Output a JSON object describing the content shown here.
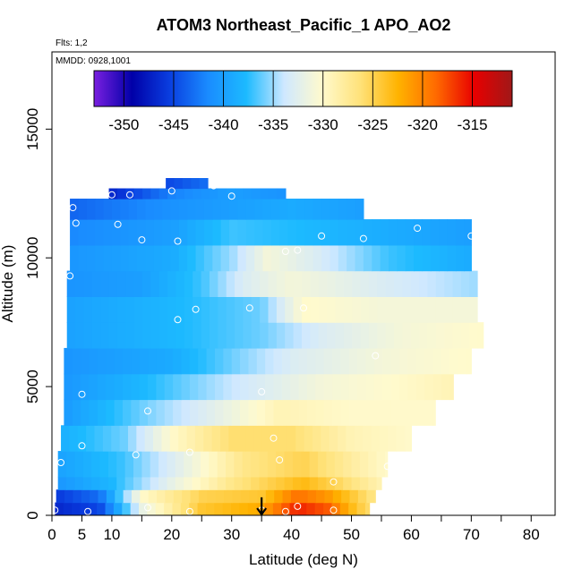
{
  "chart_data": {
    "type": "heatmap",
    "title": "ATOM3 Northeast_Pacific_1 APO_AO2",
    "notes": [
      "Flts: 1,2",
      "MMDD: 0928,1001"
    ],
    "xlabel": "Latitude (deg N)",
    "ylabel": "Altitude (m)",
    "xlim": [
      0,
      84
    ],
    "ylim": [
      0,
      18000
    ],
    "x_ticks": [
      0,
      5,
      10,
      20,
      30,
      40,
      50,
      60,
      70,
      80
    ],
    "y_ticks": [
      0,
      5000,
      10000,
      15000
    ],
    "colorbar": {
      "range": [
        -353,
        -311
      ],
      "ticks": [
        -350,
        -345,
        -340,
        -335,
        -330,
        -325,
        -320,
        -315
      ],
      "colors": [
        "#7a1fe0",
        "#0000a8",
        "#0a3fe0",
        "#1a8cff",
        "#1cbaff",
        "#cfe8ff",
        "#fffacd",
        "#ffe27a",
        "#ffb300",
        "#ff6a00",
        "#e80000",
        "#a01818"
      ]
    },
    "layers": [
      {
        "y": [
          0,
          500
        ],
        "xmin": 0.5,
        "xmax": 53,
        "stops": [
          [
            0,
            -347
          ],
          [
            8,
            -345
          ],
          [
            15,
            -332
          ],
          [
            25,
            -324
          ],
          [
            35,
            -322
          ],
          [
            41,
            -316
          ],
          [
            46,
            -318
          ],
          [
            50,
            -323
          ],
          [
            53,
            -326
          ]
        ]
      },
      {
        "y": [
          500,
          1000
        ],
        "xmin": 0.7,
        "xmax": 54,
        "stops": [
          [
            0,
            -346
          ],
          [
            8,
            -343
          ],
          [
            15,
            -330
          ],
          [
            25,
            -325
          ],
          [
            35,
            -324
          ],
          [
            41,
            -319
          ],
          [
            46,
            -321
          ],
          [
            54,
            -327
          ]
        ]
      },
      {
        "y": [
          1000,
          1500
        ],
        "xmin": 1,
        "xmax": 55,
        "stops": [
          [
            0,
            -341
          ],
          [
            10,
            -338
          ],
          [
            20,
            -332
          ],
          [
            30,
            -327
          ],
          [
            42,
            -323
          ],
          [
            47,
            -325
          ],
          [
            55,
            -329
          ]
        ]
      },
      {
        "y": [
          1500,
          2500
        ],
        "xmin": 1,
        "xmax": 56,
        "stops": [
          [
            0,
            -340
          ],
          [
            12,
            -337
          ],
          [
            22,
            -332
          ],
          [
            32,
            -327
          ],
          [
            42,
            -325
          ],
          [
            50,
            -328
          ],
          [
            56,
            -330
          ]
        ]
      },
      {
        "y": [
          2500,
          3500
        ],
        "xmin": 1.5,
        "xmax": 60,
        "stops": [
          [
            0,
            -339
          ],
          [
            12,
            -336
          ],
          [
            20,
            -330
          ],
          [
            30,
            -326
          ],
          [
            40,
            -326
          ],
          [
            50,
            -329
          ],
          [
            60,
            -330
          ]
        ]
      },
      {
        "y": [
          3500,
          4500
        ],
        "xmin": 2,
        "xmax": 64,
        "stops": [
          [
            0,
            -341
          ],
          [
            15,
            -336
          ],
          [
            25,
            -333
          ],
          [
            38,
            -329
          ],
          [
            50,
            -330
          ],
          [
            64,
            -330
          ]
        ]
      },
      {
        "y": [
          4500,
          5500
        ],
        "xmin": 2,
        "xmax": 67,
        "stops": [
          [
            0,
            -341
          ],
          [
            15,
            -338
          ],
          [
            30,
            -334
          ],
          [
            45,
            -331
          ],
          [
            58,
            -330
          ],
          [
            67,
            -329
          ]
        ]
      },
      {
        "y": [
          5500,
          6500
        ],
        "xmin": 2,
        "xmax": 70,
        "stops": [
          [
            0,
            -341
          ],
          [
            20,
            -339
          ],
          [
            40,
            -333
          ],
          [
            55,
            -331
          ],
          [
            70,
            -330
          ]
        ]
      },
      {
        "y": [
          6500,
          7500
        ],
        "xmin": 2.5,
        "xmax": 72,
        "stops": [
          [
            0,
            -340
          ],
          [
            20,
            -338
          ],
          [
            35,
            -336
          ],
          [
            45,
            -333
          ],
          [
            58,
            -331
          ],
          [
            72,
            -330
          ]
        ]
      },
      {
        "y": [
          7500,
          8500
        ],
        "xmin": 2.5,
        "xmax": 71,
        "stops": [
          [
            0,
            -340
          ],
          [
            20,
            -338
          ],
          [
            35,
            -336
          ],
          [
            42,
            -330
          ],
          [
            55,
            -331
          ],
          [
            71,
            -331
          ]
        ]
      },
      {
        "y": [
          8500,
          9500
        ],
        "xmin": 2.5,
        "xmax": 71,
        "stops": [
          [
            0,
            -341
          ],
          [
            15,
            -340
          ],
          [
            25,
            -337
          ],
          [
            32,
            -333
          ],
          [
            40,
            -331
          ],
          [
            55,
            -333
          ],
          [
            71,
            -335
          ]
        ]
      },
      {
        "y": [
          9500,
          10500
        ],
        "xmin": 3,
        "xmax": 70,
        "stops": [
          [
            0,
            -341
          ],
          [
            20,
            -339
          ],
          [
            30,
            -335
          ],
          [
            36,
            -331
          ],
          [
            44,
            -333
          ],
          [
            56,
            -337
          ],
          [
            70,
            -339
          ]
        ]
      },
      {
        "y": [
          10500,
          11500
        ],
        "xmin": 3,
        "xmax": 70,
        "stops": [
          [
            0,
            -342
          ],
          [
            20,
            -340
          ],
          [
            30,
            -337
          ],
          [
            45,
            -338
          ],
          [
            70,
            -340
          ]
        ]
      },
      {
        "y": [
          11500,
          12300
        ],
        "xmin": 3,
        "xmax": 52,
        "stops": [
          [
            0,
            -344
          ],
          [
            20,
            -341
          ],
          [
            40,
            -339
          ],
          [
            52,
            -340
          ]
        ]
      },
      {
        "y": [
          12300,
          12700
        ],
        "xmin": 9.5,
        "xmax": 39,
        "stops": [
          [
            9.5,
            -347
          ],
          [
            20,
            -342
          ],
          [
            30,
            -340
          ],
          [
            39,
            -341
          ]
        ]
      },
      {
        "y": [
          12700,
          13100
        ],
        "xmin": 19,
        "xmax": 26,
        "stops": [
          [
            19,
            -345
          ],
          [
            26,
            -343
          ]
        ]
      }
    ],
    "sample_points": [
      [
        0.5,
        200
      ],
      [
        6,
        150
      ],
      [
        16,
        300
      ],
      [
        23,
        150
      ],
      [
        35,
        200
      ],
      [
        39,
        150
      ],
      [
        41,
        350
      ],
      [
        47,
        200
      ],
      [
        1.5,
        2050
      ],
      [
        5,
        2700
      ],
      [
        14,
        2350
      ],
      [
        23,
        2450
      ],
      [
        38,
        2150
      ],
      [
        47,
        1300
      ],
      [
        56,
        1900
      ],
      [
        5,
        4700
      ],
      [
        16,
        4050
      ],
      [
        37,
        3000
      ],
      [
        35,
        4800
      ],
      [
        54,
        6200
      ],
      [
        21,
        7600
      ],
      [
        24,
        8000
      ],
      [
        33,
        8050
      ],
      [
        42,
        8050
      ],
      [
        3,
        9300
      ],
      [
        39,
        10250
      ],
      [
        41,
        10300
      ],
      [
        15,
        10700
      ],
      [
        21,
        10650
      ],
      [
        45,
        10850
      ],
      [
        52,
        10750
      ],
      [
        61,
        11150
      ],
      [
        70,
        10850
      ],
      [
        4,
        11350
      ],
      [
        11,
        11300
      ],
      [
        3.5,
        11950
      ],
      [
        10,
        12450
      ],
      [
        13,
        12450
      ],
      [
        20,
        12600
      ],
      [
        30,
        12400
      ],
      [
        27,
        12800
      ]
    ],
    "flight_marker": {
      "x": 35,
      "y_from": 700,
      "y_to": 0,
      "shape": "down-arrow"
    }
  }
}
